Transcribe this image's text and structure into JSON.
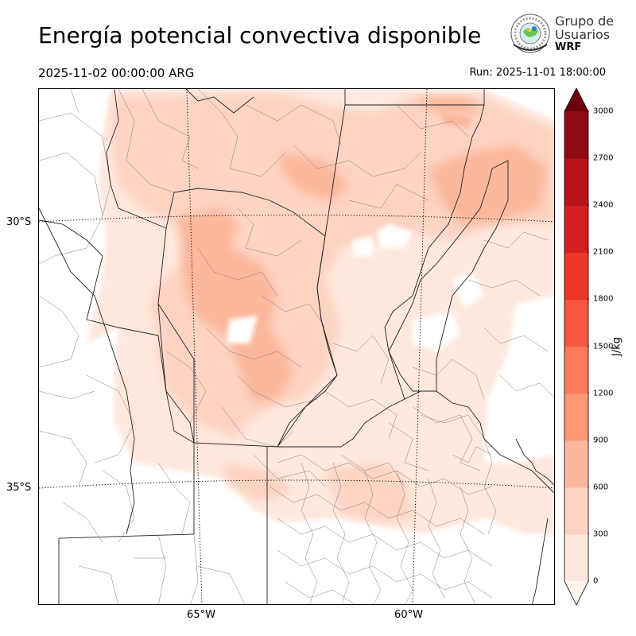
{
  "title": "Energía potencial convectiva disponible",
  "valid_time": "2025-11-02 00:00:00 ARG",
  "run_time": "Run: 2025-11-01 18:00:00",
  "logo": {
    "line1": "Grupo de",
    "line2": "Usuarios",
    "line3": "WRF"
  },
  "lat_labels": [
    "30°S",
    "35°S"
  ],
  "lon_labels": [
    "65°W",
    "60°W"
  ],
  "colorbar": {
    "units": "J/kg",
    "ticks": [
      "0",
      "300",
      "600",
      "900",
      "1200",
      "1500",
      "1800",
      "2100",
      "2400",
      "2700",
      "3000"
    ],
    "colors": [
      "#fee8dd",
      "#fdd3c1",
      "#fcb79c",
      "#fc9778",
      "#fb7a5a",
      "#f6573e",
      "#eb3628",
      "#d21f20",
      "#b41419",
      "#8e0b13",
      "#6a010d"
    ]
  }
}
